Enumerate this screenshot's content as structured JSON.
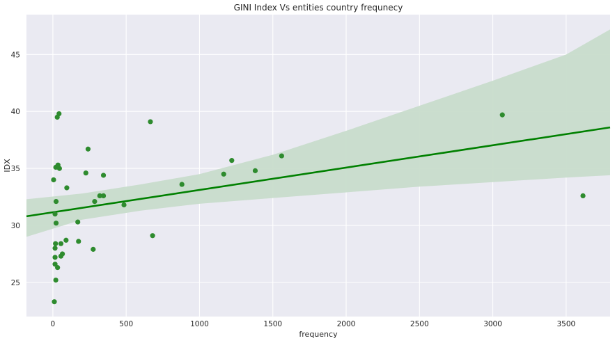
{
  "chart_data": {
    "type": "scatter",
    "title": "GINI Index Vs entities country frequnecy",
    "xlabel": "frequency",
    "ylabel": "IDX",
    "xlim": [
      -180,
      3800
    ],
    "ylim": [
      22,
      48.5
    ],
    "xticks": [
      0,
      500,
      1000,
      1500,
      2000,
      2500,
      3000,
      3500
    ],
    "yticks": [
      25,
      30,
      35,
      40,
      45
    ],
    "grid": true,
    "background_color": "#eaeaf2",
    "point_color": "#2e8b2e",
    "line_color": "#008000",
    "band_color": "#c8dccb",
    "regression": {
      "x": [
        -180,
        3800
      ],
      "y": [
        30.8,
        38.6
      ],
      "band": [
        {
          "x": -180,
          "lower": 29.0,
          "upper": 32.3
        },
        {
          "x": 200,
          "lower": 30.5,
          "upper": 32.8
        },
        {
          "x": 600,
          "lower": 31.3,
          "upper": 33.6
        },
        {
          "x": 1000,
          "lower": 31.9,
          "upper": 34.5
        },
        {
          "x": 1500,
          "lower": 32.4,
          "upper": 36.2
        },
        {
          "x": 2000,
          "lower": 32.9,
          "upper": 38.3
        },
        {
          "x": 2500,
          "lower": 33.4,
          "upper": 40.5
        },
        {
          "x": 3000,
          "lower": 33.8,
          "upper": 42.7
        },
        {
          "x": 3500,
          "lower": 34.2,
          "upper": 45.0
        },
        {
          "x": 3800,
          "lower": 34.4,
          "upper": 47.2
        }
      ]
    },
    "points": [
      {
        "x": 5,
        "y": 34.0
      },
      {
        "x": 10,
        "y": 23.3
      },
      {
        "x": 15,
        "y": 31.0
      },
      {
        "x": 15,
        "y": 28.0
      },
      {
        "x": 15,
        "y": 27.2
      },
      {
        "x": 15,
        "y": 26.6
      },
      {
        "x": 18,
        "y": 28.4
      },
      {
        "x": 20,
        "y": 35.1
      },
      {
        "x": 20,
        "y": 25.2
      },
      {
        "x": 22,
        "y": 32.1
      },
      {
        "x": 22,
        "y": 30.2
      },
      {
        "x": 30,
        "y": 39.5
      },
      {
        "x": 32,
        "y": 26.3
      },
      {
        "x": 35,
        "y": 35.3
      },
      {
        "x": 42,
        "y": 39.8
      },
      {
        "x": 45,
        "y": 35.0
      },
      {
        "x": 55,
        "y": 27.3
      },
      {
        "x": 55,
        "y": 28.4
      },
      {
        "x": 65,
        "y": 27.5
      },
      {
        "x": 90,
        "y": 28.7
      },
      {
        "x": 95,
        "y": 33.3
      },
      {
        "x": 170,
        "y": 30.3
      },
      {
        "x": 175,
        "y": 28.6
      },
      {
        "x": 225,
        "y": 34.6
      },
      {
        "x": 240,
        "y": 36.7
      },
      {
        "x": 275,
        "y": 27.9
      },
      {
        "x": 285,
        "y": 32.1
      },
      {
        "x": 320,
        "y": 32.6
      },
      {
        "x": 345,
        "y": 32.6
      },
      {
        "x": 345,
        "y": 34.4
      },
      {
        "x": 485,
        "y": 31.8
      },
      {
        "x": 665,
        "y": 39.1
      },
      {
        "x": 680,
        "y": 29.1
      },
      {
        "x": 880,
        "y": 33.6
      },
      {
        "x": 1165,
        "y": 34.5
      },
      {
        "x": 1220,
        "y": 35.7
      },
      {
        "x": 1380,
        "y": 34.8
      },
      {
        "x": 1560,
        "y": 36.1
      },
      {
        "x": 3065,
        "y": 39.7
      },
      {
        "x": 3615,
        "y": 32.6
      }
    ]
  }
}
